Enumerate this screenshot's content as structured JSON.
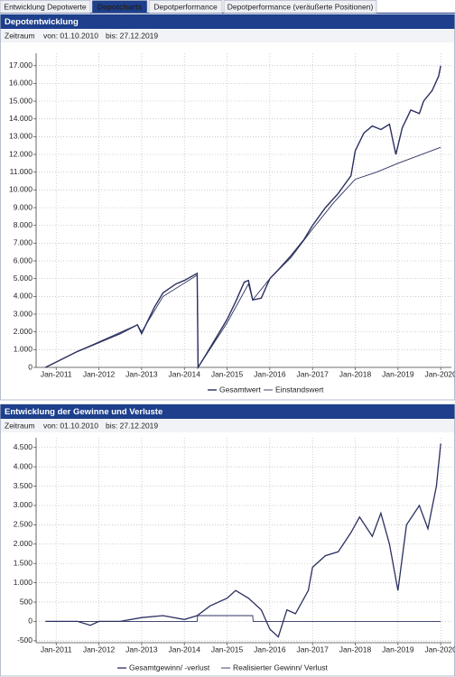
{
  "tabs": [
    "Entwicklung Depotwerte",
    "Depotcharts",
    "Depotperformance",
    "Depotperformance (veräußerte Positionen)"
  ],
  "active_tab": 1,
  "chart_data": [
    {
      "type": "line",
      "title": "Depotentwicklung",
      "period": [
        "Zeitraum",
        "von: 01.10.2010",
        "bis: 27.12.2019"
      ],
      "xlim": [
        2010.53,
        2020.25
      ],
      "xticks": [
        {
          "value": 2011,
          "label": "Jan-2011"
        },
        {
          "value": 2012,
          "label": "Jan-2012"
        },
        {
          "value": 2013,
          "label": "Jan-2013"
        },
        {
          "value": 2014,
          "label": "Jan-2014"
        },
        {
          "value": 2015,
          "label": "Jan-2015"
        },
        {
          "value": 2016,
          "label": "Jan-2016"
        },
        {
          "value": 2017,
          "label": "Jan-2017"
        },
        {
          "value": 2018,
          "label": "Jan-2018"
        },
        {
          "value": 2019,
          "label": "Jan-2019"
        },
        {
          "value": 2020,
          "label": "Jan-2020"
        }
      ],
      "ylim": [
        0,
        17700
      ],
      "yticks": [
        0,
        {
          "value": 1000,
          "label": "1.000"
        },
        {
          "value": 2000,
          "label": "2.000"
        },
        {
          "value": 3000,
          "label": "3.000"
        },
        {
          "value": 4000,
          "label": "4.000"
        },
        {
          "value": 5000,
          "label": "5.000"
        },
        {
          "value": 6000,
          "label": "6.000"
        },
        {
          "value": 7000,
          "label": "7.000"
        },
        {
          "value": 8000,
          "label": "8.000"
        },
        {
          "value": 9000,
          "label": "9.000"
        },
        {
          "value": 10000,
          "label": "10.000"
        },
        {
          "value": 11000,
          "label": "11.000"
        },
        {
          "value": 12000,
          "label": "12.000"
        },
        {
          "value": 13000,
          "label": "13.000"
        },
        {
          "value": 14000,
          "label": "14.000"
        },
        {
          "value": 15000,
          "label": "15.000"
        },
        {
          "value": 16000,
          "label": "16.000"
        },
        {
          "value": 17000,
          "label": "17.000"
        }
      ],
      "grid": true,
      "series": [
        {
          "name": "Gesamtwert",
          "color": "#2b3060",
          "width": 1.4,
          "x": [
            2010.75,
            2011.0,
            2011.5,
            2012.0,
            2012.5,
            2012.9,
            2013.0,
            2013.1,
            2013.3,
            2013.5,
            2013.8,
            2014.0,
            2014.3,
            2014.32,
            2014.5,
            2014.8,
            2015.0,
            2015.2,
            2015.4,
            2015.5,
            2015.6,
            2015.8,
            2016.0,
            2016.2,
            2016.5,
            2016.8,
            2017.0,
            2017.3,
            2017.6,
            2017.9,
            2018.0,
            2018.2,
            2018.4,
            2018.6,
            2018.8,
            2018.95,
            2019.1,
            2019.3,
            2019.5,
            2019.6,
            2019.8,
            2019.95,
            2020.0
          ],
          "values": [
            0,
            300,
            900,
            1400,
            1900,
            2400,
            1900,
            2400,
            3400,
            4200,
            4700,
            4900,
            5300,
            0,
            700,
            1900,
            2700,
            3700,
            4800,
            4900,
            3800,
            3900,
            5000,
            5500,
            6300,
            7200,
            8000,
            9000,
            9800,
            10800,
            12200,
            13200,
            13600,
            13400,
            13700,
            12000,
            13500,
            14500,
            14300,
            15000,
            15600,
            16400,
            17000
          ]
        },
        {
          "name": "Einstandswert",
          "color": "#2b3060",
          "width": 0.9,
          "x": [
            2010.75,
            2011.5,
            2012.9,
            2013.0,
            2013.5,
            2014.3,
            2014.32,
            2015.0,
            2015.5,
            2015.6,
            2016.0,
            2016.5,
            2017.0,
            2017.5,
            2018.0,
            2018.5,
            2019.0,
            2019.5,
            2020.0
          ],
          "values": [
            0,
            900,
            2400,
            2000,
            4000,
            5200,
            0,
            2500,
            4700,
            3800,
            5000,
            6200,
            7800,
            9300,
            10600,
            11000,
            11500,
            11950,
            12400
          ]
        }
      ]
    },
    {
      "type": "line",
      "title": "Entwicklung der Gewinne und Verluste",
      "period": [
        "Zeitraum",
        "von: 01.10.2010",
        "bis: 27.12.2019"
      ],
      "xlim": [
        2010.53,
        2020.25
      ],
      "xticks": [
        {
          "value": 2011,
          "label": "Jan-2011"
        },
        {
          "value": 2012,
          "label": "Jan-2012"
        },
        {
          "value": 2013,
          "label": "Jan-2013"
        },
        {
          "value": 2014,
          "label": "Jan-2014"
        },
        {
          "value": 2015,
          "label": "Jan-2015"
        },
        {
          "value": 2016,
          "label": "Jan-2016"
        },
        {
          "value": 2017,
          "label": "Jan-2017"
        },
        {
          "value": 2018,
          "label": "Jan-2018"
        },
        {
          "value": 2019,
          "label": "Jan-2019"
        },
        {
          "value": 2020,
          "label": "Jan-2020"
        }
      ],
      "ylim": [
        -550,
        4750
      ],
      "yticks": [
        -500,
        0,
        500,
        {
          "value": 1000,
          "label": "1.000"
        },
        {
          "value": 1500,
          "label": "1.500"
        },
        {
          "value": 2000,
          "label": "2.000"
        },
        {
          "value": 2500,
          "label": "2.500"
        },
        {
          "value": 3000,
          "label": "3.000"
        },
        {
          "value": 3500,
          "label": "3.500"
        },
        {
          "value": 4000,
          "label": "4.000"
        },
        {
          "value": 4500,
          "label": "4.500"
        }
      ],
      "grid": true,
      "series": [
        {
          "name": "Gesamtgewinn/ -verlust",
          "color": "#2b3060",
          "width": 1.3,
          "x": [
            2010.75,
            2011.5,
            2011.8,
            2012.0,
            2012.5,
            2013.0,
            2013.5,
            2014.0,
            2014.3,
            2014.6,
            2015.0,
            2015.2,
            2015.5,
            2015.8,
            2016.0,
            2016.2,
            2016.4,
            2016.6,
            2016.9,
            2017.0,
            2017.3,
            2017.6,
            2017.9,
            2018.1,
            2018.4,
            2018.6,
            2018.8,
            2019.0,
            2019.2,
            2019.5,
            2019.7,
            2019.9,
            2020.0
          ],
          "values": [
            0,
            0,
            -100,
            0,
            0,
            100,
            150,
            50,
            150,
            400,
            600,
            800,
            600,
            300,
            -200,
            -400,
            300,
            200,
            800,
            1400,
            1700,
            1800,
            2300,
            2700,
            2200,
            2800,
            2000,
            800,
            2500,
            3000,
            2400,
            3500,
            4600
          ]
        },
        {
          "name": "Realisierter Gewinn/ Verlust",
          "color": "#2b3060",
          "width": 0.9,
          "x": [
            2010.75,
            2014.3,
            2014.31,
            2015.6,
            2015.61,
            2020.0
          ],
          "values": [
            0,
            0,
            150,
            150,
            0,
            0
          ]
        }
      ]
    }
  ]
}
